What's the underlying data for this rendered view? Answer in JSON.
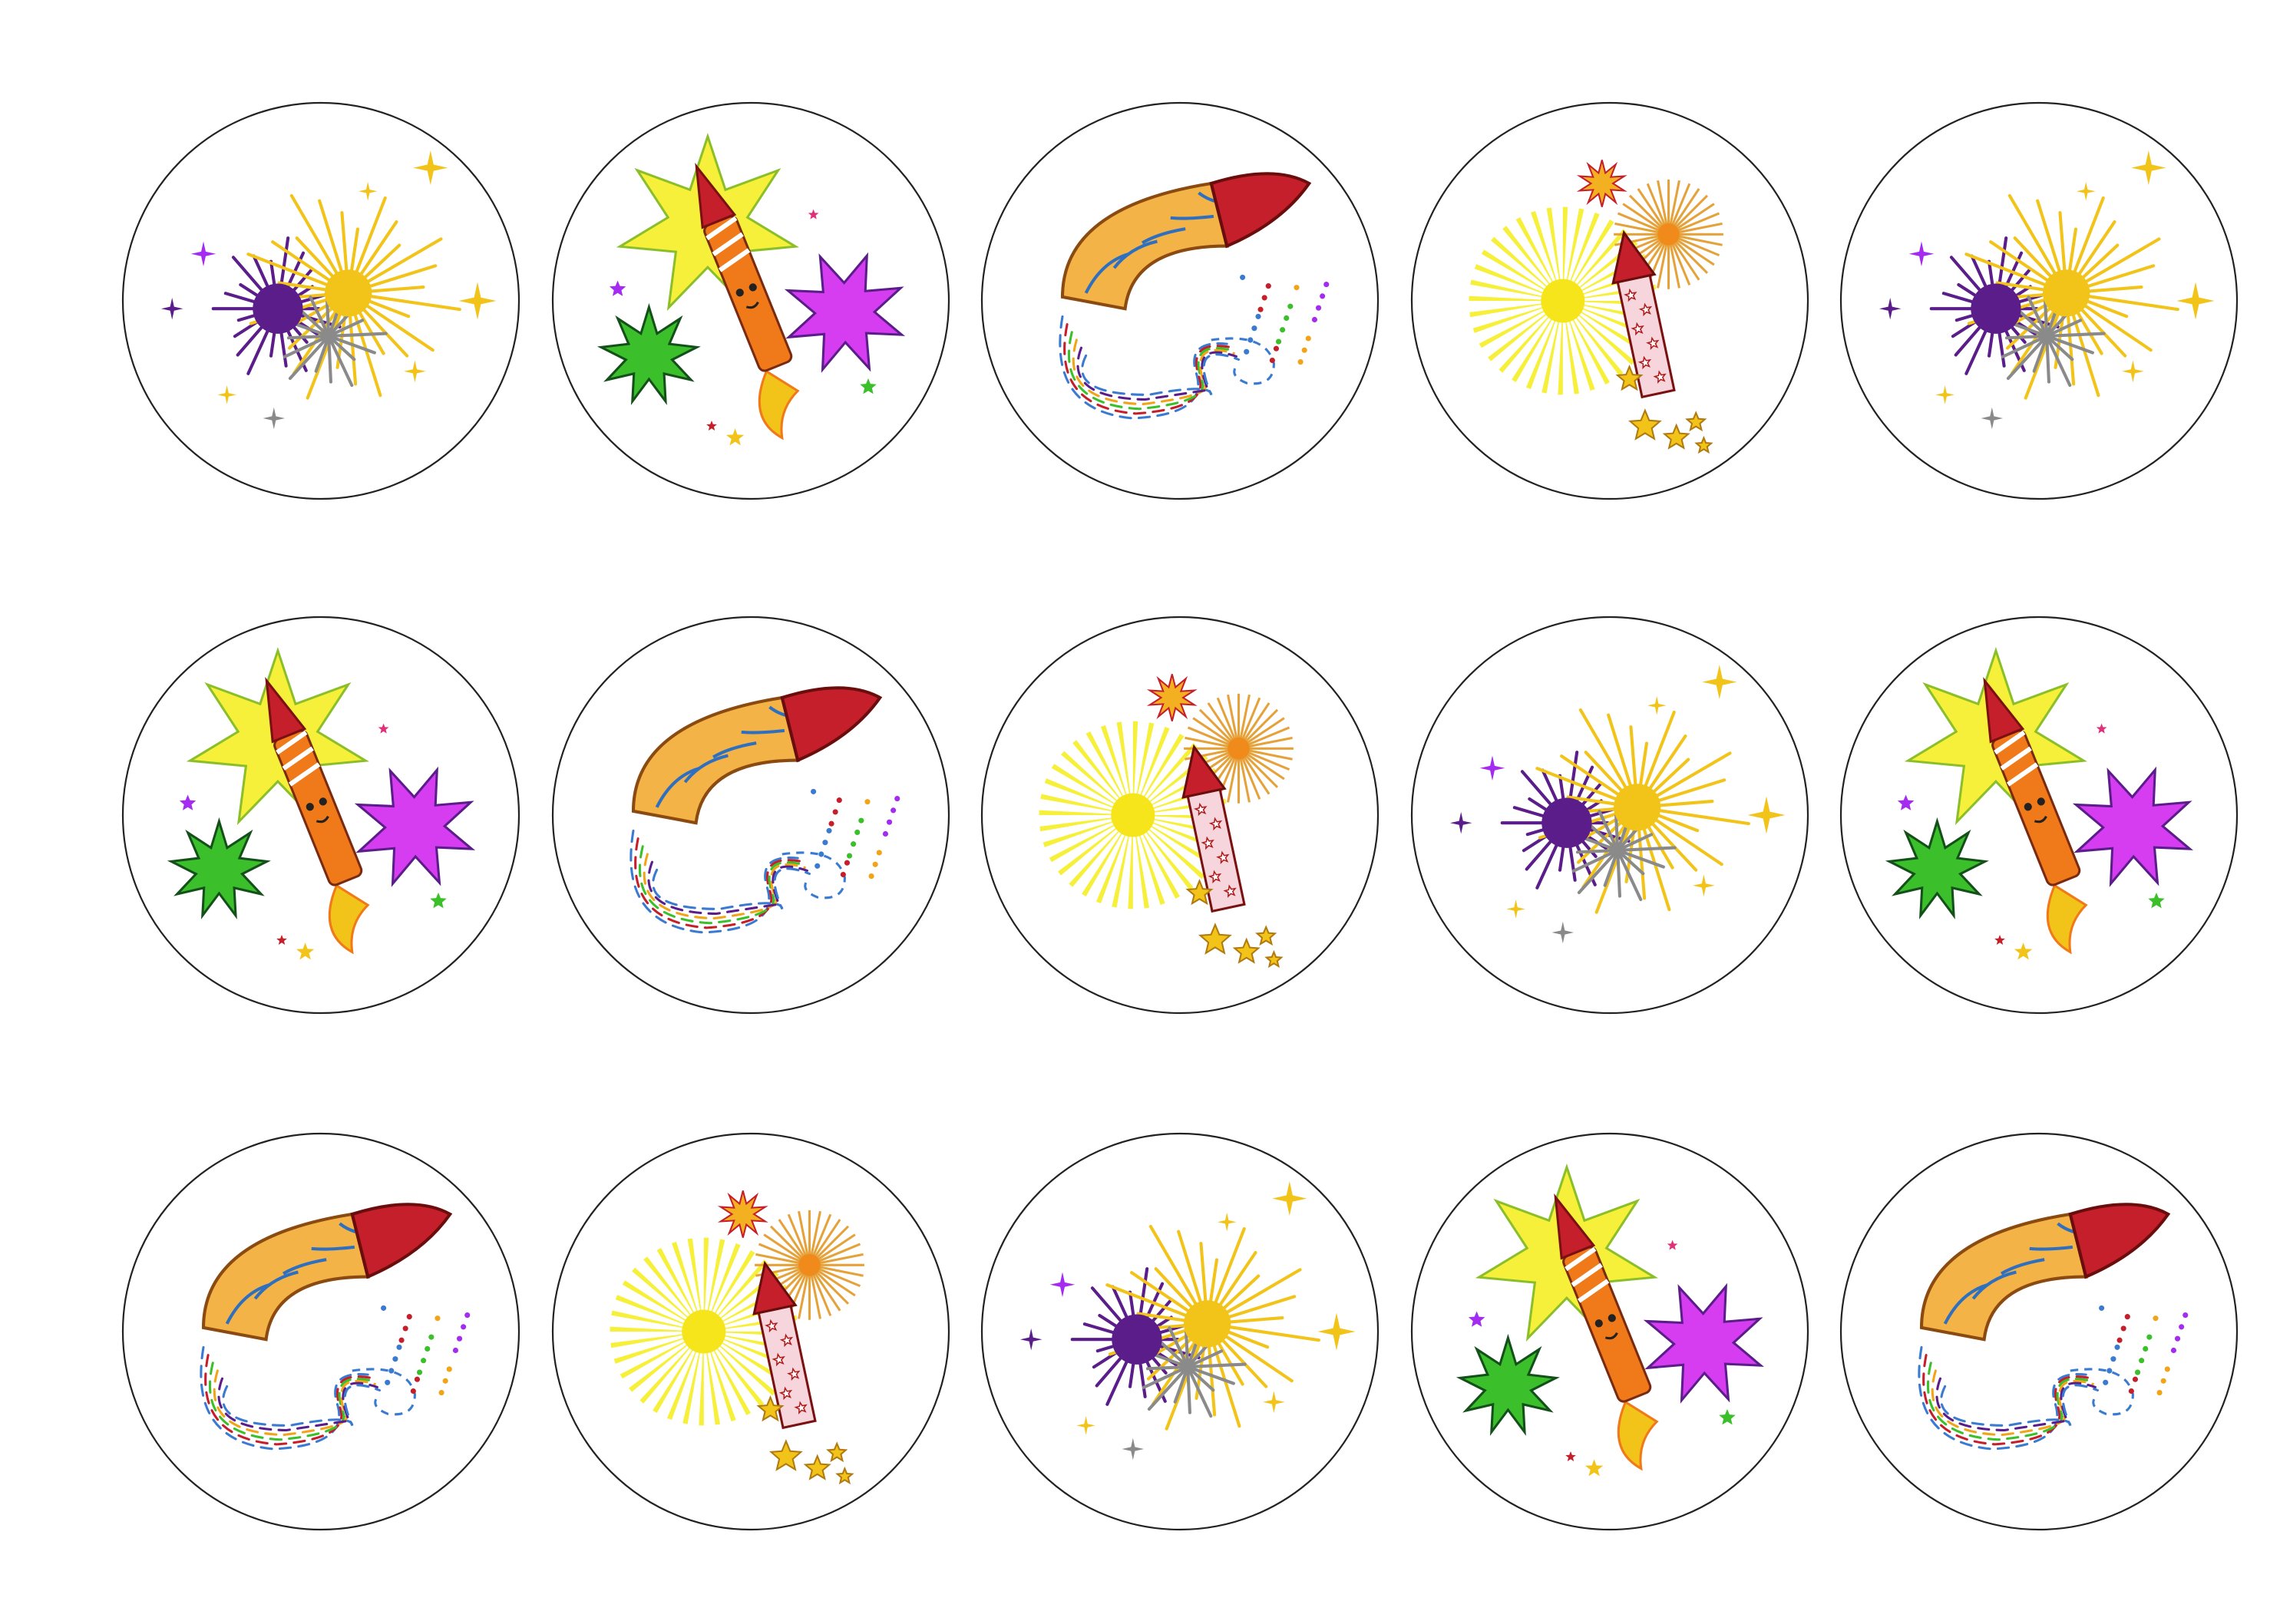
{
  "sheet": {
    "rows": 3,
    "columns": 5,
    "circle_outline_color": "#222222",
    "tiles": [
      [
        "sparkler",
        "rocket-star",
        "curved-rocket",
        "sunburst-rocket",
        "sparkler"
      ],
      [
        "rocket-star",
        "curved-rocket",
        "sunburst-rocket",
        "sparkler",
        "rocket-star"
      ],
      [
        "curved-rocket",
        "sunburst-rocket",
        "sparkler",
        "rocket-star",
        "curved-rocket"
      ]
    ]
  },
  "colors": {
    "yellow": "#f2c318",
    "light_yellow": "#f7f03a",
    "purple": "#5a1d8a",
    "violet": "#a32cf0",
    "magenta": "#d63cf0",
    "green": "#3bbf2a",
    "red": "#c41f2b",
    "orange": "#f07a1a",
    "gray": "#8a8a8a"
  }
}
